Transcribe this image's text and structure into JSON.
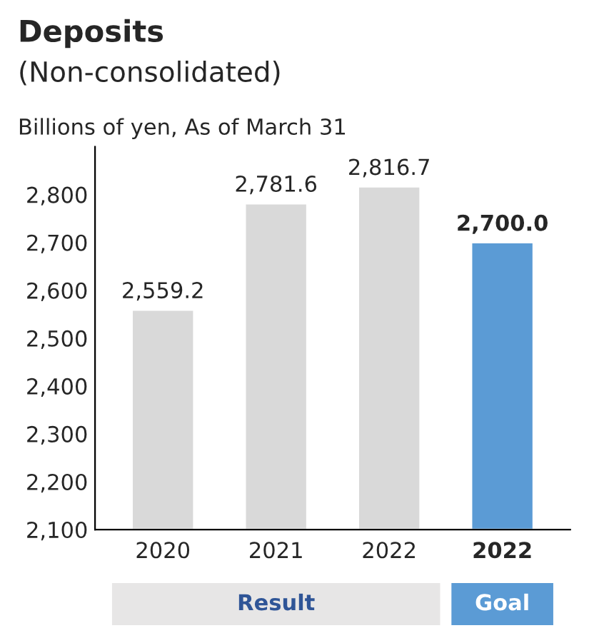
{
  "chart_data": {
    "type": "bar",
    "title": "Deposits",
    "subtitle": "(Non-consolidated)",
    "ylabel": "Billions of yen, As of March 31",
    "categories": [
      "2020",
      "2021",
      "2022",
      "2022"
    ],
    "values": [
      2559.2,
      2781.6,
      2816.7,
      2700.0
    ],
    "colors": [
      "#d9d9d9",
      "#d9d9d9",
      "#d9d9d9",
      "#5b9bd5"
    ],
    "value_labels": [
      "2,559.2",
      "2,781.6",
      "2,816.7",
      "2,700.0"
    ],
    "ylim": [
      2100,
      2900
    ],
    "yticks": [
      {
        "value": 2100,
        "label": "2,100"
      },
      {
        "value": 2200,
        "label": "2,200"
      },
      {
        "value": 2300,
        "label": "2,300"
      },
      {
        "value": 2400,
        "label": "2,400"
      },
      {
        "value": 2500,
        "label": "2,500"
      },
      {
        "value": 2600,
        "label": "2,600"
      },
      {
        "value": 2700,
        "label": "2,700"
      },
      {
        "value": 2800,
        "label": "2,800"
      }
    ],
    "grid": false,
    "legend": false,
    "annotations": [
      "Result",
      "Goal"
    ]
  }
}
